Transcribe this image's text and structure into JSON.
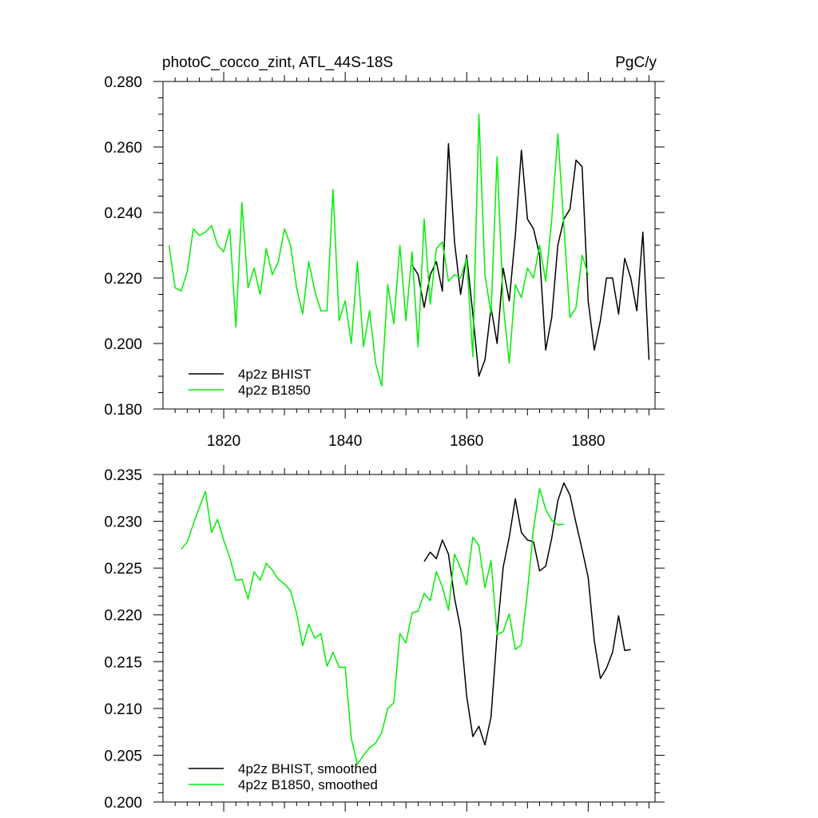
{
  "chart_data": [
    {
      "type": "line",
      "title": "photoC_cocco_zint, ATL_44S-18S",
      "units": "PgC/y",
      "xlim": [
        1810,
        1891
      ],
      "ylim": [
        0.18,
        0.28
      ],
      "yticks": [
        "0.180",
        "0.200",
        "0.220",
        "0.240",
        "0.260",
        "0.280"
      ],
      "xticks": [
        "1820",
        "1840",
        "1860",
        "1880"
      ],
      "legend": "bottom-left",
      "colors": {
        "bhist": "#000000",
        "b1850": "#00ee00"
      },
      "series": [
        {
          "name": "4p2z BHIST",
          "color_key": "bhist",
          "x": [
            1851,
            1852,
            1853,
            1854,
            1855,
            1856,
            1857,
            1858,
            1859,
            1860,
            1861,
            1862,
            1863,
            1864,
            1865,
            1866,
            1867,
            1868,
            1869,
            1870,
            1871,
            1872,
            1873,
            1874,
            1875,
            1876,
            1877,
            1878,
            1879,
            1880,
            1881,
            1882,
            1883,
            1884,
            1885,
            1886,
            1887,
            1888,
            1889,
            1890
          ],
          "y": [
            0.224,
            0.221,
            0.211,
            0.221,
            0.225,
            0.216,
            0.261,
            0.231,
            0.215,
            0.227,
            0.209,
            0.19,
            0.195,
            0.211,
            0.2,
            0.223,
            0.213,
            0.233,
            0.259,
            0.238,
            0.235,
            0.227,
            0.198,
            0.208,
            0.23,
            0.238,
            0.241,
            0.256,
            0.254,
            0.213,
            0.198,
            0.207,
            0.22,
            0.22,
            0.209,
            0.226,
            0.22,
            0.21,
            0.234,
            0.195
          ]
        },
        {
          "name": "4p2z B1850",
          "color_key": "b1850",
          "x": [
            1811,
            1812,
            1813,
            1814,
            1815,
            1816,
            1817,
            1818,
            1819,
            1820,
            1821,
            1822,
            1823,
            1824,
            1825,
            1826,
            1827,
            1828,
            1829,
            1830,
            1831,
            1832,
            1833,
            1834,
            1835,
            1836,
            1837,
            1838,
            1839,
            1840,
            1841,
            1842,
            1843,
            1844,
            1845,
            1846,
            1847,
            1848,
            1849,
            1850,
            1851,
            1852,
            1853,
            1854,
            1855,
            1856,
            1857,
            1858,
            1859,
            1860,
            1861,
            1862,
            1863,
            1864,
            1865,
            1866,
            1867,
            1868,
            1869,
            1870,
            1871,
            1872,
            1873,
            1874,
            1875,
            1876,
            1877,
            1878,
            1879,
            1880
          ],
          "y": [
            0.23,
            0.217,
            0.216,
            0.222,
            0.235,
            0.233,
            0.234,
            0.236,
            0.23,
            0.228,
            0.235,
            0.205,
            0.243,
            0.217,
            0.223,
            0.215,
            0.229,
            0.221,
            0.225,
            0.235,
            0.23,
            0.217,
            0.209,
            0.225,
            0.216,
            0.21,
            0.21,
            0.247,
            0.207,
            0.213,
            0.2,
            0.225,
            0.199,
            0.21,
            0.194,
            0.187,
            0.218,
            0.206,
            0.23,
            0.207,
            0.228,
            0.199,
            0.238,
            0.212,
            0.229,
            0.231,
            0.219,
            0.221,
            0.22,
            0.226,
            0.196,
            0.27,
            0.221,
            0.209,
            0.257,
            0.212,
            0.194,
            0.218,
            0.214,
            0.223,
            0.22,
            0.23,
            0.219,
            0.238,
            0.264,
            0.236,
            0.208,
            0.211,
            0.227,
            0.221
          ]
        }
      ]
    },
    {
      "type": "line",
      "xlim": [
        1810,
        1891
      ],
      "ylim": [
        0.2,
        0.235
      ],
      "yticks": [
        "0.200",
        "0.205",
        "0.210",
        "0.215",
        "0.220",
        "0.225",
        "0.230",
        "0.235"
      ],
      "legend": "bottom-left",
      "series": [
        {
          "name": "4p2z BHIST, smoothed",
          "color_key": "bhist",
          "x": [
            1853,
            1854,
            1855,
            1856,
            1857,
            1858,
            1859,
            1860,
            1861,
            1862,
            1863,
            1864,
            1865,
            1866,
            1867,
            1868,
            1869,
            1870,
            1871,
            1872,
            1873,
            1874,
            1875,
            1876,
            1877,
            1878,
            1879,
            1880,
            1881,
            1882,
            1883,
            1884,
            1885,
            1886,
            1887
          ],
          "y": [
            0.2257,
            0.2267,
            0.226,
            0.228,
            0.2265,
            0.2218,
            0.2185,
            0.2113,
            0.207,
            0.2081,
            0.2061,
            0.2091,
            0.218,
            0.2251,
            0.2283,
            0.2324,
            0.2288,
            0.228,
            0.2278,
            0.2247,
            0.2252,
            0.2282,
            0.2322,
            0.2341,
            0.2328,
            0.2298,
            0.227,
            0.224,
            0.2172,
            0.2132,
            0.2143,
            0.216,
            0.2199,
            0.2162,
            0.2163
          ]
        },
        {
          "name": "4p2z B1850, smoothed",
          "color_key": "b1850",
          "x": [
            1813,
            1814,
            1815,
            1816,
            1817,
            1818,
            1819,
            1820,
            1821,
            1822,
            1823,
            1824,
            1825,
            1826,
            1827,
            1828,
            1829,
            1830,
            1831,
            1832,
            1833,
            1834,
            1835,
            1836,
            1837,
            1838,
            1839,
            1840,
            1841,
            1842,
            1843,
            1844,
            1845,
            1846,
            1847,
            1848,
            1849,
            1850,
            1851,
            1852,
            1853,
            1854,
            1855,
            1856,
            1857,
            1858,
            1859,
            1860,
            1861,
            1862,
            1863,
            1864,
            1865,
            1866,
            1867,
            1868,
            1869,
            1870,
            1871,
            1872,
            1873,
            1874,
            1875,
            1876
          ],
          "y": [
            0.227,
            0.2278,
            0.2297,
            0.2315,
            0.2332,
            0.2288,
            0.2302,
            0.228,
            0.2261,
            0.2237,
            0.2238,
            0.2217,
            0.2246,
            0.2237,
            0.2255,
            0.2248,
            0.2238,
            0.2233,
            0.2226,
            0.2202,
            0.2167,
            0.219,
            0.2175,
            0.218,
            0.2145,
            0.216,
            0.2144,
            0.2144,
            0.2068,
            0.204,
            0.205,
            0.2058,
            0.2063,
            0.2074,
            0.21,
            0.2106,
            0.218,
            0.217,
            0.2202,
            0.2204,
            0.2223,
            0.2215,
            0.2246,
            0.223,
            0.2205,
            0.2265,
            0.225,
            0.2232,
            0.2283,
            0.2274,
            0.2229,
            0.2258,
            0.2179,
            0.2182,
            0.2201,
            0.2163,
            0.2168,
            0.2225,
            0.2292,
            0.2335,
            0.2313,
            0.2301,
            0.2296,
            0.2297
          ]
        }
      ]
    }
  ]
}
